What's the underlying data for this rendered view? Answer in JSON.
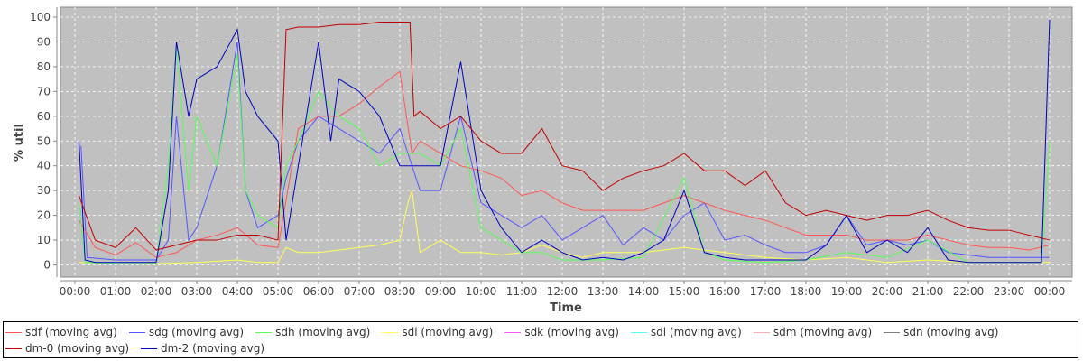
{
  "chart_data": {
    "type": "line",
    "title": "",
    "xlabel": "Time",
    "ylabel": "% util",
    "ylim": [
      0,
      100
    ],
    "yticks": [
      "0",
      "10",
      "20",
      "30",
      "40",
      "50",
      "60",
      "70",
      "80",
      "90",
      "100"
    ],
    "xlim_hours": [
      0,
      24
    ],
    "xticks": [
      "00:00",
      "01:00",
      "02:00",
      "03:00",
      "04:00",
      "05:00",
      "06:00",
      "07:00",
      "08:00",
      "09:00",
      "10:00",
      "11:00",
      "12:00",
      "13:00",
      "14:00",
      "15:00",
      "16:00",
      "17:00",
      "18:00",
      "19:00",
      "20:00",
      "21:00",
      "22:00",
      "23:00",
      "00:00"
    ],
    "grid": true,
    "legend_position": "bottom",
    "series": [
      {
        "name": "sdf (moving avg)",
        "color": "#ff5555",
        "x": [
          0.1,
          0.5,
          1,
          1.5,
          2,
          2.5,
          3,
          3.5,
          4,
          4.5,
          5,
          5.5,
          6,
          6.5,
          7,
          7.5,
          8,
          8.3,
          8.5,
          9,
          9.5,
          10,
          10.5,
          11,
          11.5,
          12,
          12.5,
          13,
          13.5,
          14,
          14.5,
          15,
          15.5,
          16,
          16.5,
          17,
          17.5,
          18,
          18.5,
          19,
          19.5,
          20,
          20.5,
          21,
          21.5,
          22,
          22.5,
          23,
          23.5,
          24
        ],
        "y": [
          18,
          7,
          4,
          9,
          3,
          5,
          10,
          12,
          15,
          8,
          7,
          55,
          60,
          60,
          65,
          72,
          78,
          45,
          50,
          45,
          40,
          38,
          35,
          28,
          30,
          25,
          22,
          22,
          22,
          22,
          25,
          28,
          25,
          22,
          20,
          18,
          15,
          12,
          12,
          12,
          10,
          10,
          10,
          12,
          10,
          8,
          7,
          7,
          6,
          8
        ]
      },
      {
        "name": "sdg (moving avg)",
        "color": "#5555ff",
        "x": [
          0.15,
          0.3,
          1,
          1.5,
          2,
          2.3,
          2.5,
          2.8,
          3,
          3.5,
          4,
          4.2,
          4.5,
          5,
          5.2,
          5.5,
          6,
          6.5,
          7,
          7.5,
          8,
          8.5,
          9,
          9.5,
          10,
          10.5,
          11,
          11.5,
          12,
          12.5,
          13,
          13.5,
          14,
          14.5,
          15,
          15.5,
          16,
          16.5,
          17,
          17.5,
          18,
          18.5,
          19,
          19.5,
          20,
          20.5,
          21,
          21.5,
          22,
          22.5,
          23,
          23.5,
          24
        ],
        "y": [
          48,
          3,
          2,
          2,
          2,
          10,
          60,
          10,
          15,
          40,
          90,
          30,
          15,
          20,
          35,
          50,
          60,
          55,
          50,
          45,
          55,
          30,
          30,
          60,
          25,
          20,
          15,
          20,
          10,
          15,
          20,
          8,
          15,
          10,
          20,
          25,
          10,
          12,
          8,
          5,
          5,
          8,
          20,
          8,
          10,
          8,
          10,
          5,
          4,
          3,
          3,
          3,
          3
        ]
      },
      {
        "name": "sdh (moving avg)",
        "color": "#55ff55",
        "x": [
          0.1,
          0.25,
          1,
          2,
          2.3,
          2.5,
          2.8,
          3,
          3.5,
          4,
          4.2,
          4.5,
          5,
          5.2,
          5.5,
          6,
          6.5,
          7,
          7.5,
          8,
          8.5,
          9,
          9.5,
          10,
          10.5,
          11,
          11.5,
          12,
          13,
          14,
          15,
          15.5,
          16,
          17,
          18,
          19,
          20,
          21,
          22,
          23,
          23.8,
          24
        ],
        "y": [
          25,
          1,
          0.5,
          0.5,
          40,
          88,
          30,
          60,
          40,
          85,
          30,
          20,
          15,
          40,
          50,
          70,
          60,
          55,
          40,
          45,
          45,
          40,
          55,
          15,
          10,
          5,
          5,
          2,
          2,
          3,
          35,
          5,
          2,
          1,
          2,
          5,
          3,
          10,
          1,
          1,
          1,
          50
        ]
      },
      {
        "name": "sdi (moving avg)",
        "color": "#ffff55",
        "x": [
          0.1,
          1,
          2,
          3,
          4,
          4.5,
          5,
          5.2,
          5.5,
          6,
          6.5,
          7,
          7.5,
          8,
          8.2,
          8.3,
          8.5,
          9,
          9.5,
          10,
          10.5,
          11,
          11.5,
          12,
          12.5,
          13,
          14,
          15,
          16,
          17,
          18,
          19,
          20,
          21,
          22,
          23,
          24
        ],
        "y": [
          1,
          0.5,
          0.5,
          1,
          2,
          1,
          1,
          7,
          5,
          5,
          6,
          7,
          8,
          10,
          25,
          30,
          5,
          10,
          5,
          5,
          4,
          5,
          8,
          5,
          3,
          5,
          5,
          7,
          5,
          3,
          2,
          3,
          1,
          2,
          1,
          1,
          1
        ]
      },
      {
        "name": "sdk (moving avg)",
        "color": "#ff55ff",
        "x": [],
        "y": []
      },
      {
        "name": "sdl (moving avg)",
        "color": "#55ffff",
        "x": [],
        "y": []
      },
      {
        "name": "sdm (moving avg)",
        "color": "#ffafaf",
        "x": [],
        "y": []
      },
      {
        "name": "sdn (moving avg)",
        "color": "#808080",
        "x": [],
        "y": []
      },
      {
        "name": "dm-0 (moving avg)",
        "color": "#c00000",
        "x": [
          0.1,
          0.5,
          1,
          1.5,
          2,
          2.5,
          3,
          3.5,
          4,
          4.5,
          5,
          5.2,
          5.5,
          6,
          6.5,
          7,
          7.5,
          8,
          8.25,
          8.35,
          8.5,
          9,
          9.5,
          10,
          10.5,
          11,
          11.5,
          12,
          12.5,
          13,
          13.5,
          14,
          14.5,
          15,
          15.5,
          16,
          16.5,
          17,
          17.5,
          18,
          18.5,
          19,
          19.5,
          20,
          20.5,
          21,
          21.5,
          22,
          22.5,
          23,
          23.5,
          24
        ],
        "y": [
          28,
          10,
          7,
          15,
          6,
          8,
          10,
          10,
          12,
          12,
          10,
          95,
          96,
          96,
          97,
          97,
          98,
          98,
          98,
          60,
          62,
          55,
          60,
          50,
          45,
          45,
          55,
          40,
          38,
          30,
          35,
          38,
          40,
          45,
          38,
          38,
          32,
          38,
          25,
          20,
          22,
          20,
          18,
          20,
          20,
          22,
          18,
          15,
          14,
          14,
          12,
          10
        ]
      },
      {
        "name": "dm-2 (moving avg)",
        "color": "#0000c0",
        "x": [
          0.1,
          0.25,
          0.5,
          1,
          1.5,
          2,
          2.3,
          2.5,
          2.8,
          3,
          3.5,
          4,
          4.2,
          4.5,
          5,
          5.2,
          5.5,
          6,
          6.3,
          6.5,
          7,
          7.5,
          8,
          8.5,
          9,
          9.5,
          10,
          10.5,
          11,
          11.5,
          12,
          12.5,
          13,
          13.5,
          14,
          14.5,
          15,
          15.5,
          16,
          16.5,
          17,
          17.5,
          18,
          18.5,
          19,
          19.5,
          20,
          20.5,
          21,
          21.5,
          22,
          22.5,
          23,
          23.5,
          23.8,
          24
        ],
        "y": [
          50,
          2,
          1,
          1,
          1,
          1,
          30,
          90,
          60,
          75,
          80,
          95,
          70,
          60,
          50,
          10,
          40,
          90,
          50,
          75,
          70,
          60,
          40,
          40,
          40,
          82,
          30,
          15,
          5,
          10,
          5,
          2,
          3,
          2,
          5,
          10,
          30,
          5,
          3,
          2,
          2,
          2,
          2,
          8,
          20,
          5,
          10,
          5,
          15,
          2,
          1,
          1,
          1,
          1,
          1,
          99
        ]
      }
    ]
  }
}
